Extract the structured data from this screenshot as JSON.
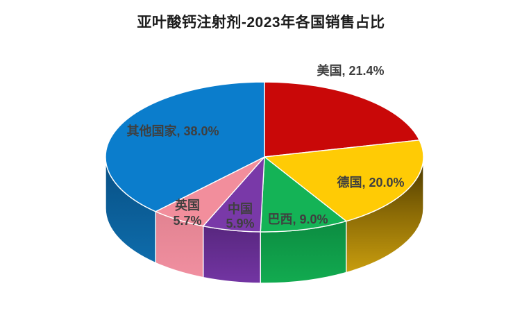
{
  "title": "亚叶酸钙注射剂-2023年各国销售占比",
  "chart_data": {
    "type": "pie",
    "style": "3d-pie",
    "title": "亚叶酸钙注射剂-2023年各国销售占比",
    "unit": "%",
    "start_angle_deg": 0,
    "direction": "clockwise",
    "legend": "none",
    "background": "#FFFFFF",
    "label_color": "#3F3F3F",
    "slices": [
      {
        "name": "美国",
        "value": 21.4,
        "color": "#C90808",
        "label_lines": [
          "美国, 21.4%"
        ]
      },
      {
        "name": "德国",
        "value": 20.0,
        "color": "#FFCB05",
        "label_lines": [
          "德国, 20.0%"
        ]
      },
      {
        "name": "巴西",
        "value": 9.0,
        "color": "#14B356",
        "label_lines": [
          "巴西, 9.0%"
        ]
      },
      {
        "name": "中国",
        "value": 5.9,
        "color": "#7939A8",
        "label_lines": [
          "中国",
          "5.9%"
        ]
      },
      {
        "name": "英国",
        "value": 5.7,
        "color": "#F28E9C",
        "label_lines": [
          "英国",
          "5.7%"
        ]
      },
      {
        "name": "其他国家",
        "value": 38.0,
        "color": "#0B7DCC",
        "label_lines": [
          "其他国家, 38.0%"
        ]
      }
    ]
  }
}
